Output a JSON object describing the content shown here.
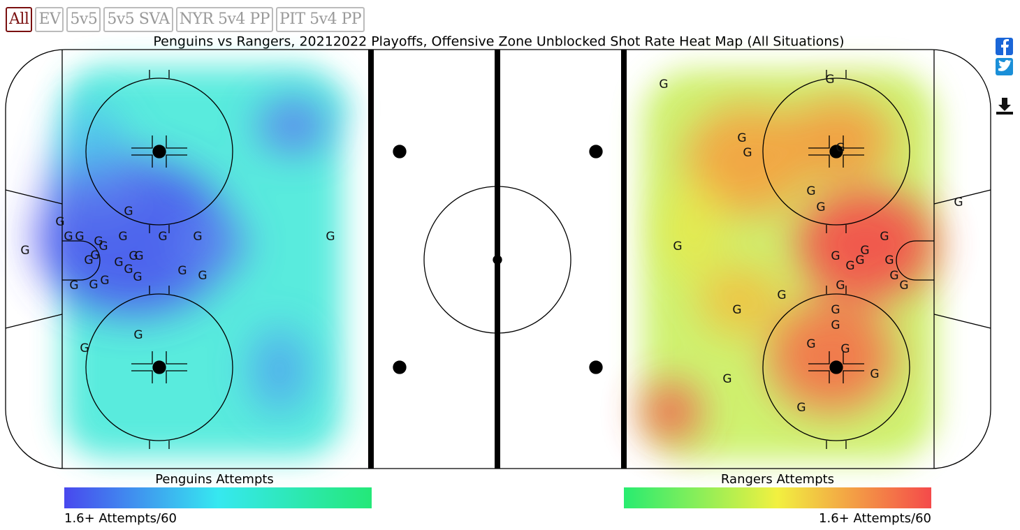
{
  "buttons": [
    "All",
    "EV",
    "5v5",
    "5v5 SVA",
    "NYR 5v4 PP",
    "PIT 5v4 PP"
  ],
  "selected_button": "All",
  "title": "Penguins vs Rangers, 20212022 Playoffs, Offensive Zone Unblocked Shot Rate Heat Map (All Situations)",
  "goal_marker": "G",
  "legends": [
    {
      "label": "Penguins Attempts",
      "scale_label": "1.6+ Attempts/60"
    },
    {
      "label": "Rangers Attempts",
      "scale_label": "1.6+ Attempts/60"
    }
  ]
}
